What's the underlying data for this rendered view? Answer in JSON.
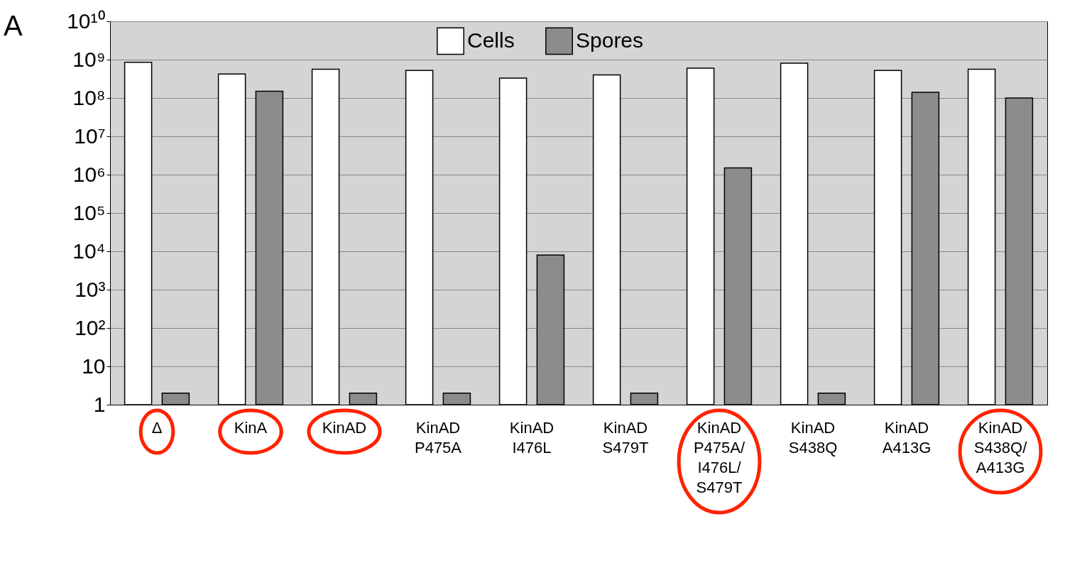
{
  "chart_data": {
    "type": "bar",
    "annotations": [
      "A"
    ],
    "categories": [
      "Δ",
      "KinA",
      "KinAD",
      "KinAD P475A",
      "KinAD I476L",
      "KinAD S479T",
      "KinAD P475A/ I476L/ S479T",
      "KinAD S438Q",
      "KinAD A413G",
      "KinAD S438Q/ A413G"
    ],
    "series": [
      {
        "name": "Cells",
        "color": "#ffffff",
        "values": [
          850000000,
          420000000,
          560000000,
          520000000,
          330000000,
          400000000,
          600000000,
          810000000,
          520000000,
          560000000
        ]
      },
      {
        "name": "Spores",
        "color": "#8c8c8c",
        "values": [
          2,
          150000000,
          2,
          2,
          8000,
          2,
          1500000,
          2,
          140000000,
          100000000
        ]
      }
    ],
    "log": "y",
    "ylim": [
      1,
      10000000000
    ],
    "yticks": [
      1,
      10,
      {
        "value": 100,
        "label": "10²"
      },
      {
        "value": 1000,
        "label": "10³"
      },
      {
        "value": 10000,
        "label": "10⁴"
      },
      {
        "value": 100000,
        "label": "10⁵"
      },
      {
        "value": 1000000,
        "label": "10⁶"
      },
      {
        "value": 10000000,
        "label": "10⁷"
      },
      {
        "value": 100000000,
        "label": "10⁸"
      },
      {
        "value": 1000000000,
        "label": "10⁹"
      },
      {
        "value": 10000000000,
        "label": "10¹⁰"
      }
    ],
    "grid": "y",
    "legend": "top"
  }
}
